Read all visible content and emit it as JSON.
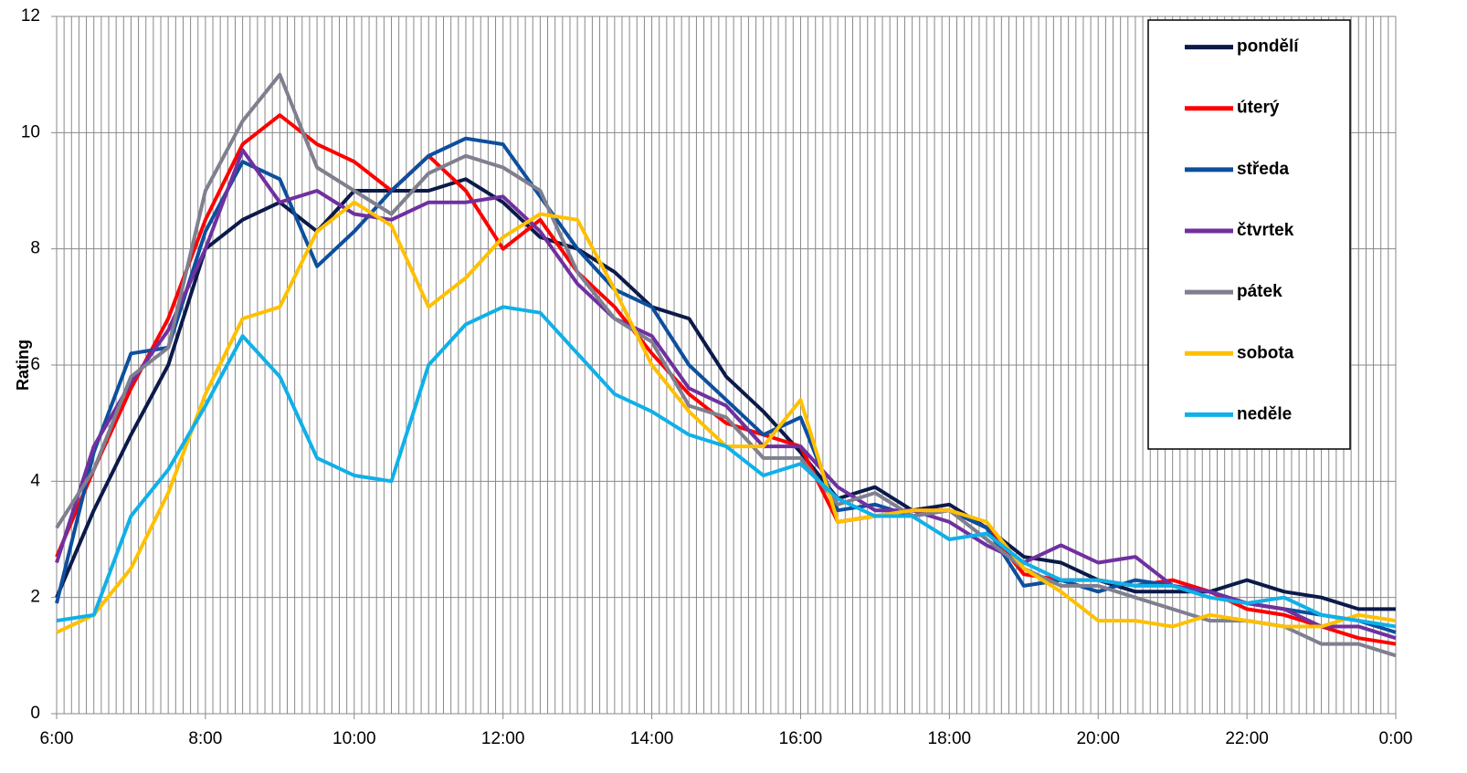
{
  "chart_data": {
    "type": "line",
    "y_label": "Rating",
    "x": [
      6,
      6.5,
      7,
      7.5,
      8,
      8.5,
      9,
      9.5,
      10,
      10.5,
      11,
      11.5,
      12,
      12.5,
      13,
      13.5,
      14,
      14.5,
      15,
      15.5,
      16,
      16.5,
      17,
      17.5,
      18,
      18.5,
      19,
      19.5,
      20,
      20.5,
      21,
      21.5,
      22,
      22.5,
      23,
      23.5,
      24
    ],
    "xlim": [
      6,
      24
    ],
    "xticks": [
      {
        "value": 6,
        "label": "6:00"
      },
      {
        "value": 8,
        "label": "8:00"
      },
      {
        "value": 10,
        "label": "10:00"
      },
      {
        "value": 12,
        "label": "12:00"
      },
      {
        "value": 14,
        "label": "14:00"
      },
      {
        "value": 16,
        "label": "16:00"
      },
      {
        "value": 18,
        "label": "18:00"
      },
      {
        "value": 20,
        "label": "20:00"
      },
      {
        "value": 22,
        "label": "22:00"
      },
      {
        "value": 24,
        "label": "0:00"
      }
    ],
    "ylim": [
      0,
      12
    ],
    "yticks": [
      0,
      2,
      4,
      6,
      8,
      10,
      12
    ],
    "grid": true,
    "legend": "top-right",
    "series": [
      {
        "name": "pondělí",
        "color": "#0c1a4a",
        "values": [
          2.0,
          3.5,
          4.8,
          6.0,
          8.0,
          8.5,
          8.8,
          8.3,
          9.0,
          9.0,
          9.0,
          9.2,
          8.8,
          8.2,
          8.0,
          7.6,
          7.0,
          6.8,
          5.8,
          5.2,
          4.5,
          3.7,
          3.9,
          3.5,
          3.6,
          3.2,
          2.7,
          2.6,
          2.3,
          2.1,
          2.1,
          2.1,
          2.3,
          2.1,
          2.0,
          1.8,
          1.8
        ]
      },
      {
        "name": "úterý",
        "color": "#ff0000",
        "values": [
          2.7,
          4.2,
          5.6,
          6.8,
          8.5,
          9.8,
          10.3,
          9.8,
          9.5,
          9.0,
          9.6,
          9.0,
          8.0,
          8.5,
          7.6,
          7.0,
          6.2,
          5.5,
          5.0,
          4.8,
          4.6,
          3.3,
          3.4,
          3.5,
          3.5,
          3.2,
          2.4,
          2.3,
          2.3,
          2.2,
          2.3,
          2.1,
          1.8,
          1.7,
          1.5,
          1.3,
          1.2
        ]
      },
      {
        "name": "středa",
        "color": "#0d4f9e",
        "values": [
          1.9,
          4.5,
          6.2,
          6.3,
          8.3,
          9.5,
          9.2,
          7.7,
          8.3,
          9.0,
          9.6,
          9.9,
          9.8,
          8.9,
          8.0,
          7.3,
          7.0,
          6.0,
          5.4,
          4.8,
          5.1,
          3.5,
          3.6,
          3.4,
          3.5,
          3.2,
          2.2,
          2.3,
          2.1,
          2.3,
          2.2,
          2.1,
          1.9,
          1.8,
          1.7,
          1.6,
          1.4
        ]
      },
      {
        "name": "čtvrtek",
        "color": "#7030a0",
        "values": [
          2.6,
          4.6,
          5.7,
          6.6,
          8.0,
          9.7,
          8.8,
          9.0,
          8.6,
          8.5,
          8.8,
          8.8,
          8.9,
          8.3,
          7.4,
          6.8,
          6.5,
          5.6,
          5.3,
          4.6,
          4.6,
          3.9,
          3.5,
          3.5,
          3.3,
          2.9,
          2.6,
          2.9,
          2.6,
          2.7,
          2.2,
          2.1,
          1.9,
          1.8,
          1.5,
          1.5,
          1.3
        ]
      },
      {
        "name": "pátek",
        "color": "#7f7f8f",
        "values": [
          3.2,
          4.2,
          5.8,
          6.3,
          9.0,
          10.2,
          11.0,
          9.4,
          9.0,
          8.6,
          9.3,
          9.6,
          9.4,
          9.0,
          7.6,
          6.8,
          6.4,
          5.3,
          5.1,
          4.4,
          4.4,
          3.6,
          3.8,
          3.4,
          3.5,
          3.0,
          2.5,
          2.2,
          2.2,
          2.0,
          1.8,
          1.6,
          1.6,
          1.5,
          1.2,
          1.2,
          1.0
        ]
      },
      {
        "name": "sobota",
        "color": "#ffc000",
        "values": [
          1.4,
          1.7,
          2.5,
          3.8,
          5.5,
          6.8,
          7.0,
          8.3,
          8.8,
          8.4,
          7.0,
          7.5,
          8.2,
          8.6,
          8.5,
          7.3,
          6.0,
          5.2,
          4.6,
          4.6,
          5.4,
          3.3,
          3.4,
          3.5,
          3.5,
          3.3,
          2.5,
          2.1,
          1.6,
          1.6,
          1.5,
          1.7,
          1.6,
          1.5,
          1.5,
          1.7,
          1.6
        ]
      },
      {
        "name": "neděle",
        "color": "#10b0e8",
        "values": [
          1.6,
          1.7,
          3.4,
          4.2,
          5.3,
          6.5,
          5.8,
          4.4,
          4.1,
          4.0,
          6.0,
          6.7,
          7.0,
          6.9,
          6.2,
          5.5,
          5.2,
          4.8,
          4.6,
          4.1,
          4.3,
          3.7,
          3.4,
          3.4,
          3.0,
          3.1,
          2.6,
          2.3,
          2.3,
          2.2,
          2.2,
          2.0,
          1.9,
          2.0,
          1.7,
          1.6,
          1.5
        ]
      }
    ]
  }
}
